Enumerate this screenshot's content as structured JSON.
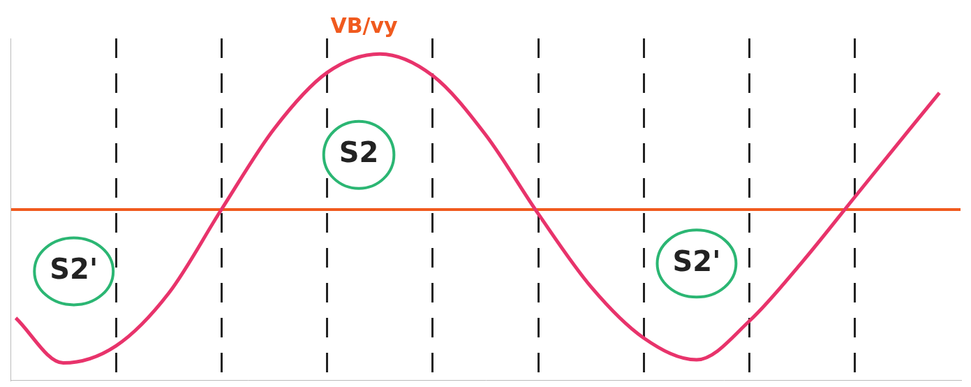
{
  "chart_data": {
    "type": "line",
    "series": [
      {
        "name": "VB/vy",
        "color": "#e8336b",
        "marker": "none",
        "line_style": "solid",
        "x": [
          0.05,
          0.5,
          1.0,
          1.5,
          2.0,
          2.5,
          3.0,
          3.5,
          4.0,
          4.5,
          5.0,
          5.5,
          6.0,
          6.5,
          7.0,
          7.5,
          8.0,
          8.5,
          8.8
        ],
        "values": [
          -0.7,
          -0.99,
          -0.88,
          -0.54,
          0,
          0.52,
          0.88,
          1.0,
          0.86,
          0.48,
          -0.03,
          -0.5,
          -0.83,
          -0.97,
          -0.72,
          -0.34,
          0.08,
          0.5,
          0.75
        ]
      }
    ],
    "xlim": [
      0,
      9
    ],
    "xticks": [
      1,
      2,
      3,
      4,
      5,
      6,
      7,
      8
    ],
    "ylim": [
      -1.1,
      1.1
    ],
    "yticks": [
      0
    ],
    "grid": true,
    "tick_labels": false,
    "annotations": [
      {
        "text": "VB/vy",
        "x": 3.35,
        "y": 1.17,
        "color": "#f05a1e"
      },
      {
        "text": "S2'",
        "x": 0.6,
        "y": -0.4,
        "color": "#2bb673"
      },
      {
        "text": "S2",
        "x": 3.3,
        "y": 0.35,
        "color": "#2bb673"
      },
      {
        "text": "S2'",
        "x": 6.5,
        "y": -0.35,
        "color": "#2bb673"
      }
    ]
  }
}
